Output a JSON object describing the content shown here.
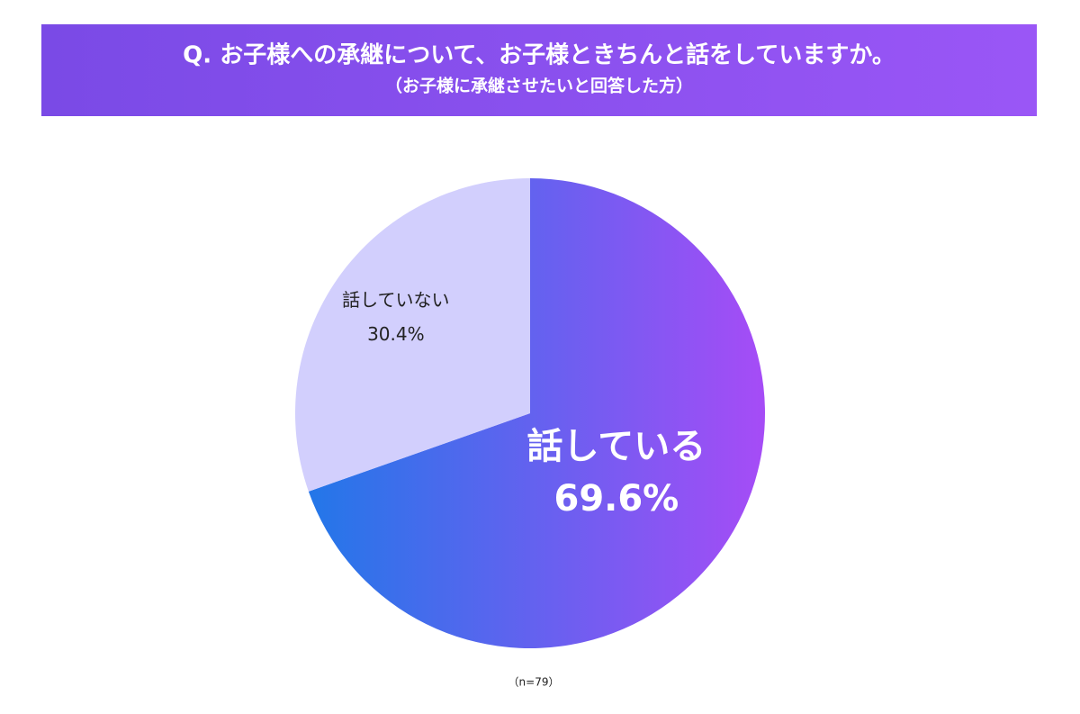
{
  "chart_data": {
    "type": "pie",
    "title": "Q. お子様への承継について、お子様ときちんと話をしていますか。",
    "subtitle": "（お子様に承継させたいと回答した方）",
    "categories": [
      "話している",
      "話していない"
    ],
    "values": [
      69.6,
      30.4
    ],
    "value_labels": [
      "69.6%",
      "30.4%"
    ],
    "colors": [
      [
        "#1f78e8",
        "#a64cf6"
      ],
      "#d2cffd"
    ],
    "note": "（n=79）"
  }
}
